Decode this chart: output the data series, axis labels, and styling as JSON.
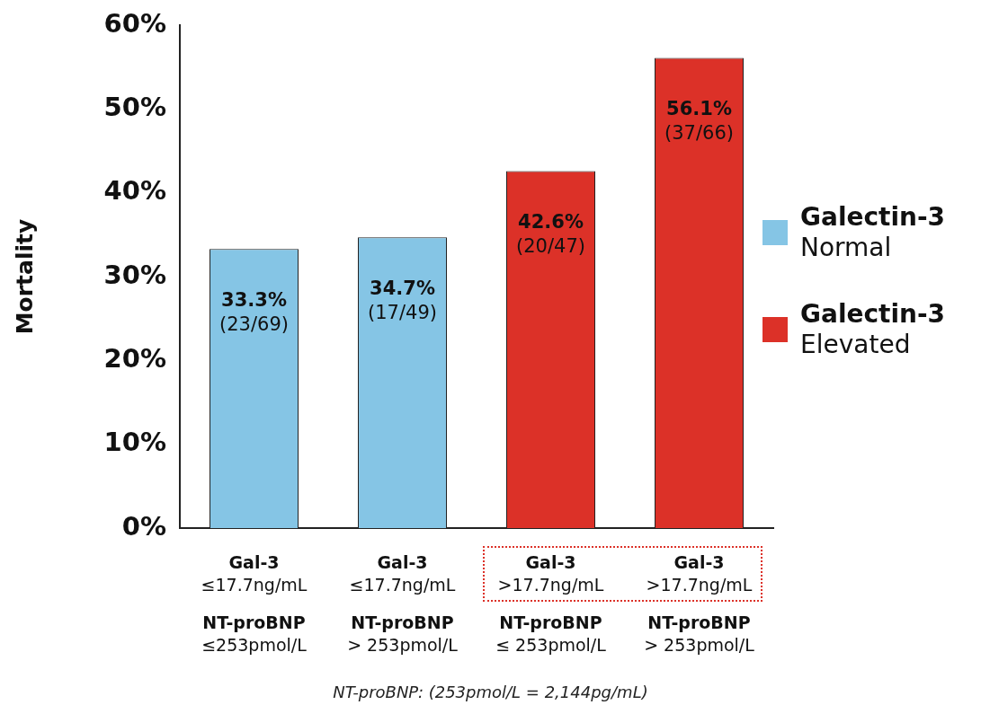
{
  "chart_data": {
    "type": "bar",
    "ylabel": "Mortality",
    "categories": [
      "Gal-3\n≤17.7ng/mL\nNT-proBNP\n≤253pmol/L",
      "Gal-3\n≤17.7ng/mL\nNT-proBNP\n> 253pmol/L",
      "Gal-3\n>17.7ng/mL\nNT-proBNP\n≤ 253pmol/L",
      "Gal-3\n>17.7ng/mL\nNT-proBNP\n> 253pmol/L"
    ],
    "series": [
      {
        "name": "Galectin-3\nNormal",
        "color": "#85c5e5",
        "values": [
          33.3,
          34.7,
          null,
          null
        ],
        "value_labels": [
          "33.3%\n(23/69)",
          "34.7%\n(17/49)",
          null,
          null
        ]
      },
      {
        "name": "Galectin-3\nElevated",
        "color": "#dc3128",
        "values": [
          null,
          null,
          42.6,
          56.1
        ],
        "value_labels": [
          null,
          null,
          "42.6%\n(20/47)",
          "56.1%\n(37/66)"
        ]
      }
    ],
    "ylim": [
      0,
      60
    ],
    "yticks": [
      {
        "value": 0,
        "label": "0%"
      },
      {
        "value": 10,
        "label": "10%"
      },
      {
        "value": 20,
        "label": "20%"
      },
      {
        "value": 30,
        "label": "30%"
      },
      {
        "value": 40,
        "label": "40%"
      },
      {
        "value": 50,
        "label": "50%"
      },
      {
        "value": 60,
        "label": "60%"
      }
    ],
    "legend": "right",
    "annotations": [
      "NT-proBNP: (253pmol/L = 2,144pg/mL)"
    ]
  }
}
